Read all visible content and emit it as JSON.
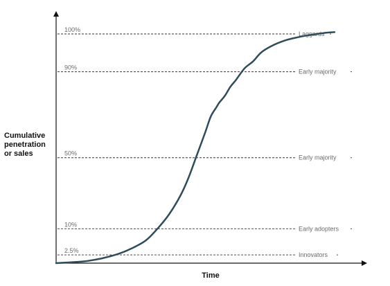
{
  "chart_data": {
    "type": "line",
    "title": "",
    "xlabel": "Time",
    "ylabel_lines": [
      "Cumulative",
      "penetration",
      "or sales"
    ],
    "xlim": [
      0,
      100
    ],
    "ylim": [
      0,
      100
    ],
    "grid": false,
    "series": [
      {
        "x": [
          0,
          10,
          16,
          22,
          27,
          32,
          36,
          40,
          44,
          47,
          50,
          53,
          55,
          57,
          58,
          60,
          62,
          64,
          67,
          70,
          73,
          77,
          81,
          85,
          89,
          93,
          96,
          99
        ],
        "y": [
          0,
          0.8,
          2,
          4,
          6.5,
          10,
          15,
          21,
          29,
          37,
          47,
          57,
          64,
          68,
          70,
          73,
          77,
          80,
          85,
          88,
          92,
          95,
          97,
          98.3,
          99.3,
          100,
          100.5,
          100.8
        ],
        "color": "#2f4c5a"
      }
    ],
    "thresholds": [
      {
        "y": 100,
        "label": "100%",
        "segment": "Laggards"
      },
      {
        "y": 83.5,
        "label": "90%",
        "segment": "Early majority"
      },
      {
        "y": 46,
        "label": "50%",
        "segment": "Early majority"
      },
      {
        "y": 15,
        "label": "10%",
        "segment": "Early adopters"
      },
      {
        "y": 3.6,
        "label": "2.5%",
        "segment": "Innovators"
      }
    ]
  }
}
